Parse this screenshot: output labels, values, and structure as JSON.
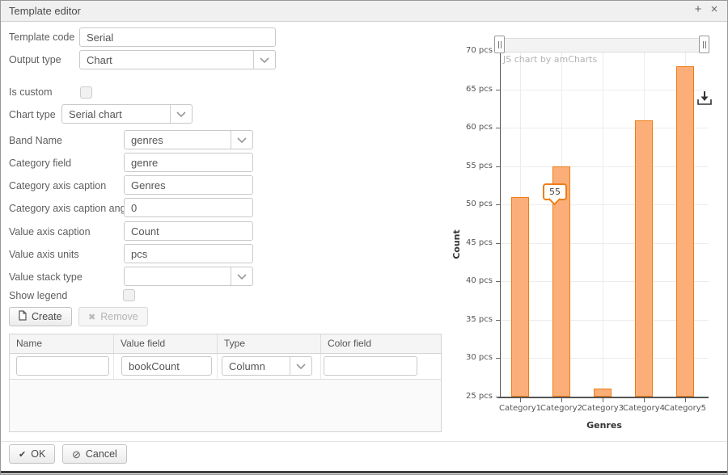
{
  "window": {
    "title": "Template editor",
    "add_icon": "+",
    "close_icon": "×"
  },
  "form": {
    "fields": [
      {
        "label": "Template code",
        "type": "input",
        "value": "Serial"
      },
      {
        "label": "Output type",
        "type": "select",
        "value": "Chart"
      },
      {
        "label": "Is custom",
        "type": "checkbox",
        "checked": false
      },
      {
        "label": "Chart type",
        "type": "select",
        "value": "Serial chart"
      },
      {
        "label": "Band Name",
        "type": "select",
        "value": "genres"
      },
      {
        "label": "Category field",
        "type": "input",
        "value": "genre"
      },
      {
        "label": "Category axis caption",
        "type": "input",
        "value": "Genres"
      },
      {
        "label": "Category axis caption angle",
        "type": "input",
        "value": "0"
      },
      {
        "label": "Value axis caption",
        "type": "input",
        "value": "Count"
      },
      {
        "label": "Value axis units",
        "type": "input",
        "value": "pcs"
      },
      {
        "label": "Value stack type",
        "type": "select",
        "value": ""
      },
      {
        "label": "Show legend",
        "type": "checkbox",
        "checked": false
      }
    ],
    "buttons": {
      "create": "Create",
      "remove": "Remove",
      "ok": "OK",
      "cancel": "Cancel"
    },
    "table": {
      "headers": [
        "Name",
        "Value field",
        "Type",
        "Color field"
      ],
      "row": {
        "name": "",
        "value_field": "bookCount",
        "type": "Column",
        "color_field": ""
      }
    }
  },
  "chart_data": {
    "type": "bar",
    "categories": [
      "Category1",
      "Category2",
      "Category3",
      "Category4",
      "Category5"
    ],
    "values": [
      51,
      55,
      26,
      61,
      68
    ],
    "title": "",
    "xlabel": "Genres",
    "ylabel": "Count",
    "y_unit": "pcs",
    "ylim": [
      25,
      70
    ],
    "ytick_step": 5,
    "grid": true,
    "legend": false,
    "watermark": "JS chart by amCharts",
    "bar_fill": "#fcae79",
    "bar_stroke": "#ee7d16",
    "tooltip": {
      "category": "Category2",
      "value": 55
    }
  }
}
